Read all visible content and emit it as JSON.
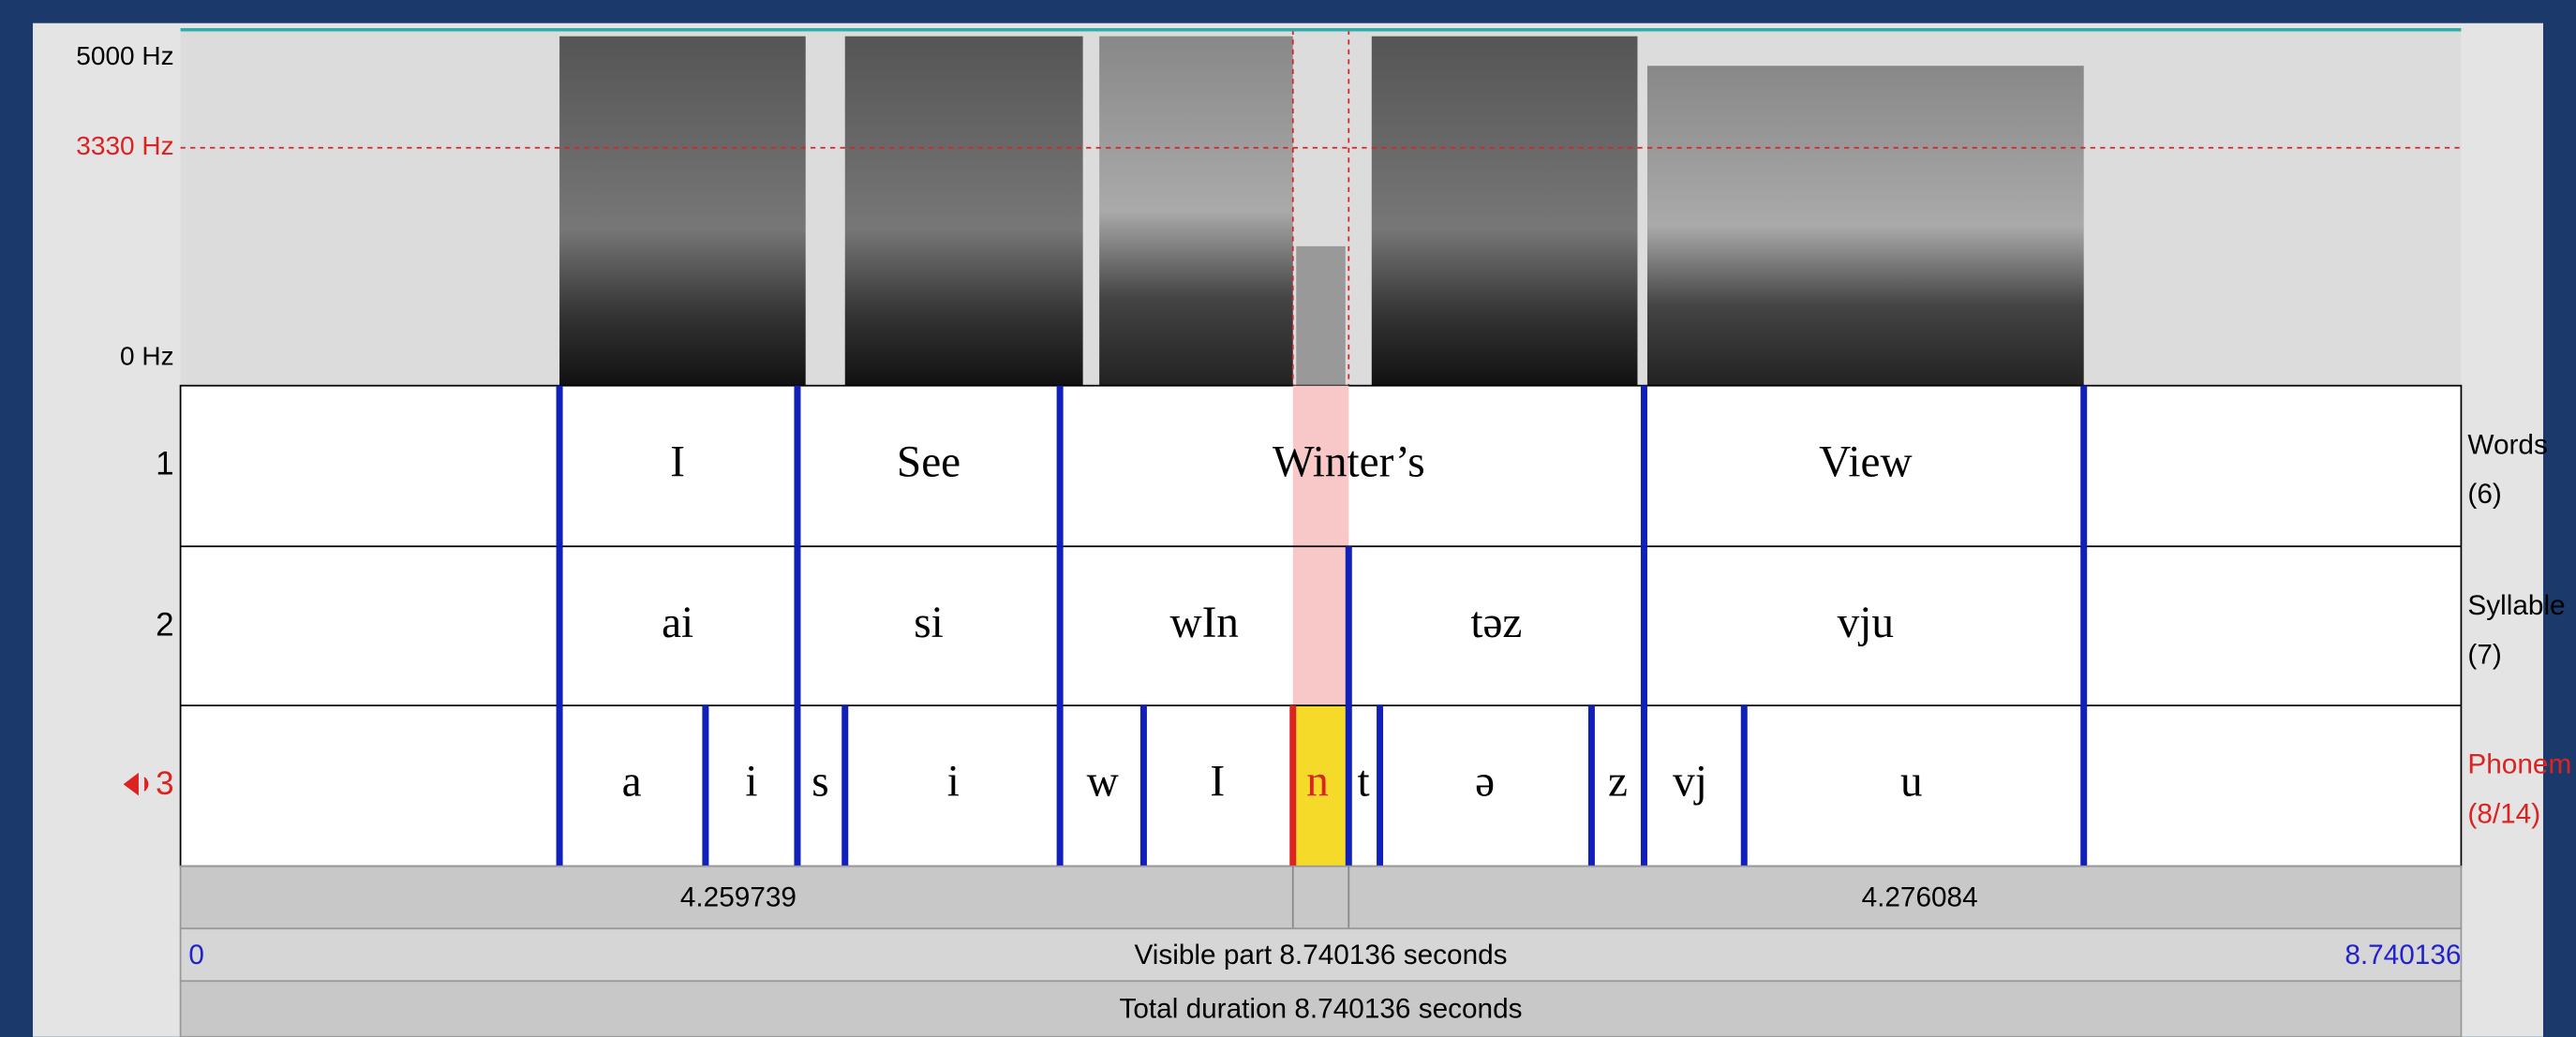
{
  "spectrogram": {
    "frequency_labels": [
      "5000 Hz",
      "3330 Hz",
      "0 Hz"
    ]
  },
  "tiers": [
    {
      "number": "1",
      "name": "Words",
      "count": "(6)",
      "intervals": [
        "I",
        "See",
        "Winter’s",
        "View"
      ]
    },
    {
      "number": "2",
      "name": "Syllable",
      "count": "(7)",
      "intervals": [
        "ai",
        "si",
        "wIn",
        "təz",
        "vju"
      ]
    },
    {
      "number": "3",
      "name": "Phonem",
      "count": "(8/14)",
      "intervals": [
        "a",
        "i",
        "s",
        "i",
        "w",
        "I",
        "n",
        "t",
        "ə",
        "z",
        "vj",
        "u"
      ]
    }
  ],
  "time_bar": {
    "left_selection": "4.259739",
    "right_selection": "4.276084",
    "start": "0",
    "visible_part": "Visible part 8.740136 seconds",
    "end": "8.740136",
    "total_duration": "Total duration 8.740136 seconds"
  }
}
